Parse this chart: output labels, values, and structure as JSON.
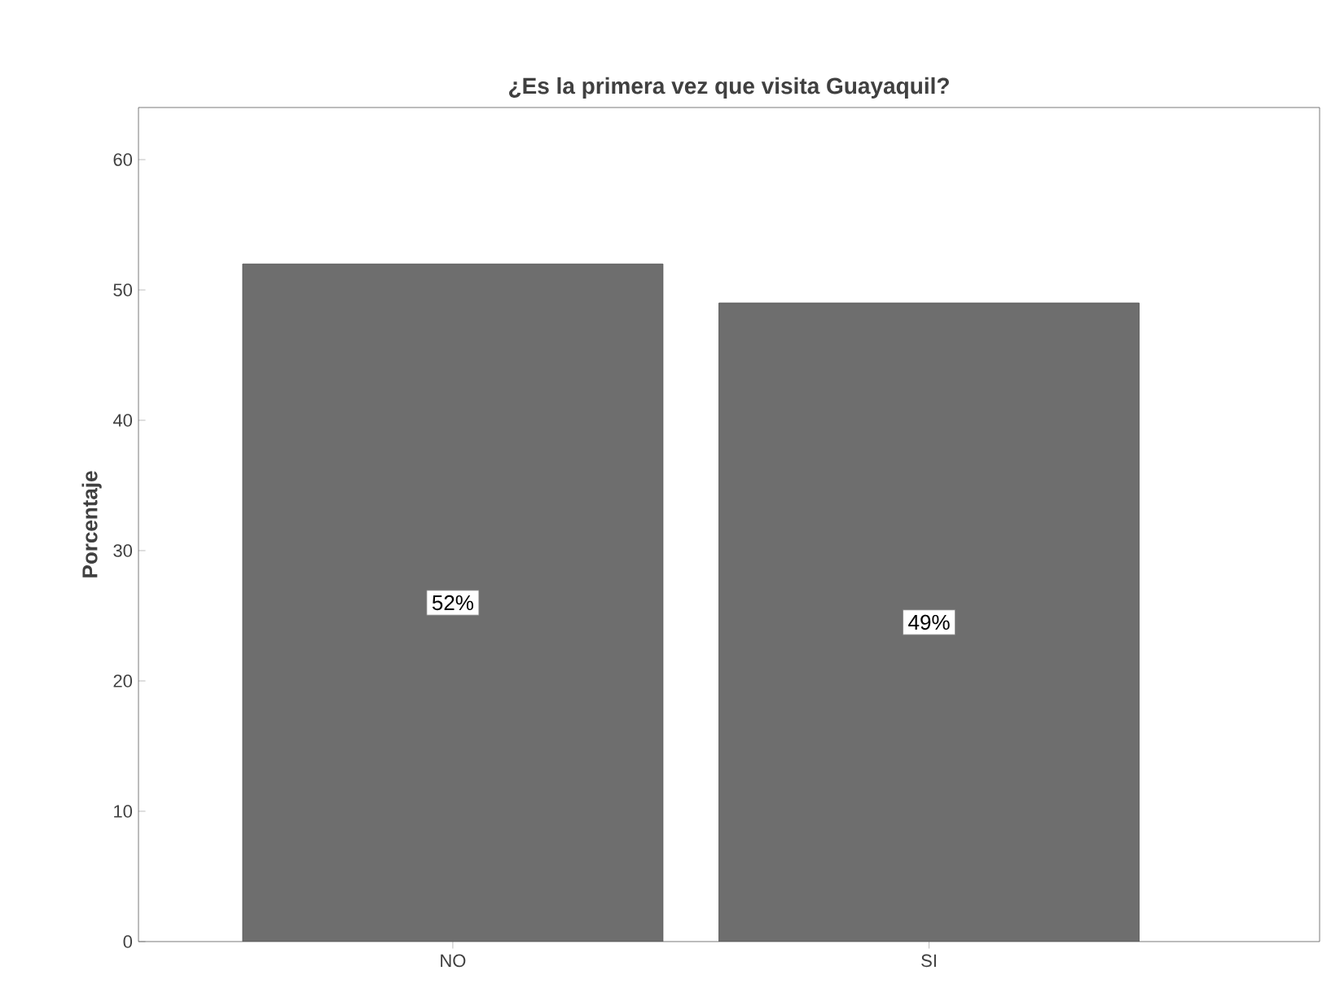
{
  "chart_data": {
    "type": "bar",
    "title": "¿Es la primera vez que visita Guayaquil?",
    "ylabel": "Porcentaje",
    "categories": [
      "NO",
      "SI"
    ],
    "values": [
      52,
      49
    ],
    "value_labels": [
      "52%",
      "49%"
    ],
    "color": "#6e6e6e",
    "ylim": [
      0,
      64
    ],
    "yticks": [
      0,
      10,
      20,
      30,
      40,
      50,
      60
    ]
  }
}
